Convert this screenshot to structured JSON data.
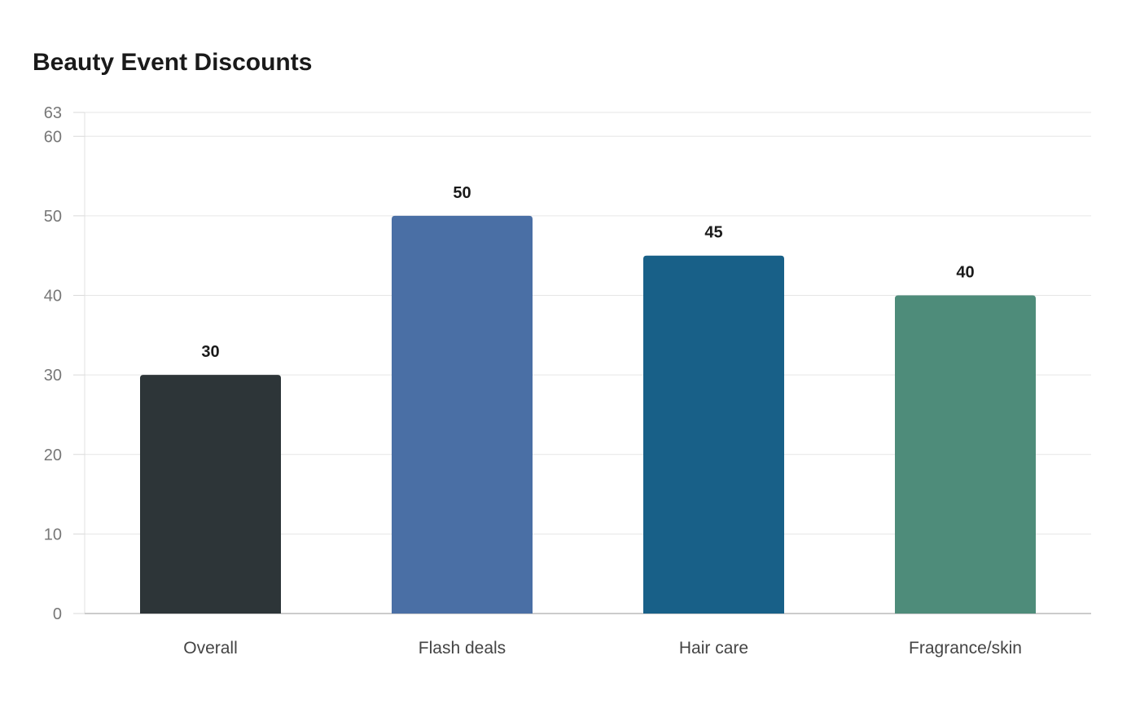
{
  "chart_data": {
    "type": "bar",
    "title": "Beauty Event Discounts",
    "categories": [
      "Overall",
      "Flash deals",
      "Hair care",
      "Fragrance/skin"
    ],
    "values": [
      30,
      50,
      45,
      40
    ],
    "colors": [
      "#2d3538",
      "#4a6fa5",
      "#186088",
      "#4e8c7a"
    ],
    "xlabel": "",
    "ylabel": "",
    "ylim": [
      0,
      63
    ],
    "yticks": [
      0,
      10,
      20,
      30,
      40,
      50,
      60,
      63
    ],
    "grid": true,
    "legend": "none",
    "data_labels": [
      "30",
      "50",
      "45",
      "40"
    ]
  }
}
